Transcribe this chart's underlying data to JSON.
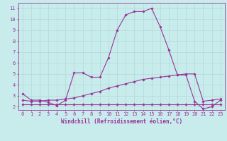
{
  "title": "",
  "xlabel": "Windchill (Refroidissement éolien,°C)",
  "ylabel": "",
  "bg_color": "#c8ecec",
  "grid_color": "#b0d8d8",
  "line_color": "#993399",
  "xlim": [
    -0.5,
    23.5
  ],
  "ylim": [
    1.7,
    11.5
  ],
  "yticks": [
    2,
    3,
    4,
    5,
    6,
    7,
    8,
    9,
    10,
    11
  ],
  "xticks": [
    0,
    1,
    2,
    3,
    4,
    5,
    6,
    7,
    8,
    9,
    10,
    11,
    12,
    13,
    14,
    15,
    16,
    17,
    18,
    19,
    20,
    21,
    22,
    23
  ],
  "series1_x": [
    0,
    1,
    2,
    3,
    4,
    5,
    6,
    7,
    8,
    9,
    10,
    11,
    12,
    13,
    14,
    15,
    16,
    17,
    18,
    19,
    20,
    21,
    22,
    23
  ],
  "series1_y": [
    3.2,
    2.6,
    2.6,
    2.4,
    2.1,
    2.6,
    5.1,
    5.1,
    4.7,
    4.7,
    6.5,
    9.0,
    10.4,
    10.7,
    10.7,
    11.0,
    9.3,
    7.2,
    4.9,
    4.9,
    2.5,
    1.8,
    2.0,
    2.6
  ],
  "series2_x": [
    0,
    1,
    2,
    3,
    4,
    5,
    6,
    7,
    8,
    9,
    10,
    11,
    12,
    13,
    14,
    15,
    16,
    17,
    18,
    19,
    20,
    21,
    22,
    23
  ],
  "series2_y": [
    2.2,
    2.2,
    2.2,
    2.2,
    2.2,
    2.2,
    2.2,
    2.2,
    2.2,
    2.2,
    2.2,
    2.2,
    2.2,
    2.2,
    2.2,
    2.2,
    2.2,
    2.2,
    2.2,
    2.2,
    2.2,
    2.2,
    2.2,
    2.2
  ],
  "series3_x": [
    0,
    1,
    2,
    3,
    4,
    5,
    6,
    7,
    8,
    9,
    10,
    11,
    12,
    13,
    14,
    15,
    16,
    17,
    18,
    19,
    20,
    21,
    22,
    23
  ],
  "series3_y": [
    2.6,
    2.5,
    2.5,
    2.6,
    2.6,
    2.7,
    2.8,
    3.0,
    3.2,
    3.4,
    3.7,
    3.9,
    4.1,
    4.3,
    4.5,
    4.6,
    4.7,
    4.8,
    4.9,
    5.0,
    5.0,
    2.5,
    2.6,
    2.7
  ],
  "marker": "D",
  "markersize": 1.8,
  "linewidth": 0.8,
  "xlabel_fontsize": 5.5,
  "tick_fontsize": 5.0,
  "xlabel_color": "#993399",
  "tick_color": "#993399",
  "axis_color": "#993399",
  "spine_color": "#993399"
}
